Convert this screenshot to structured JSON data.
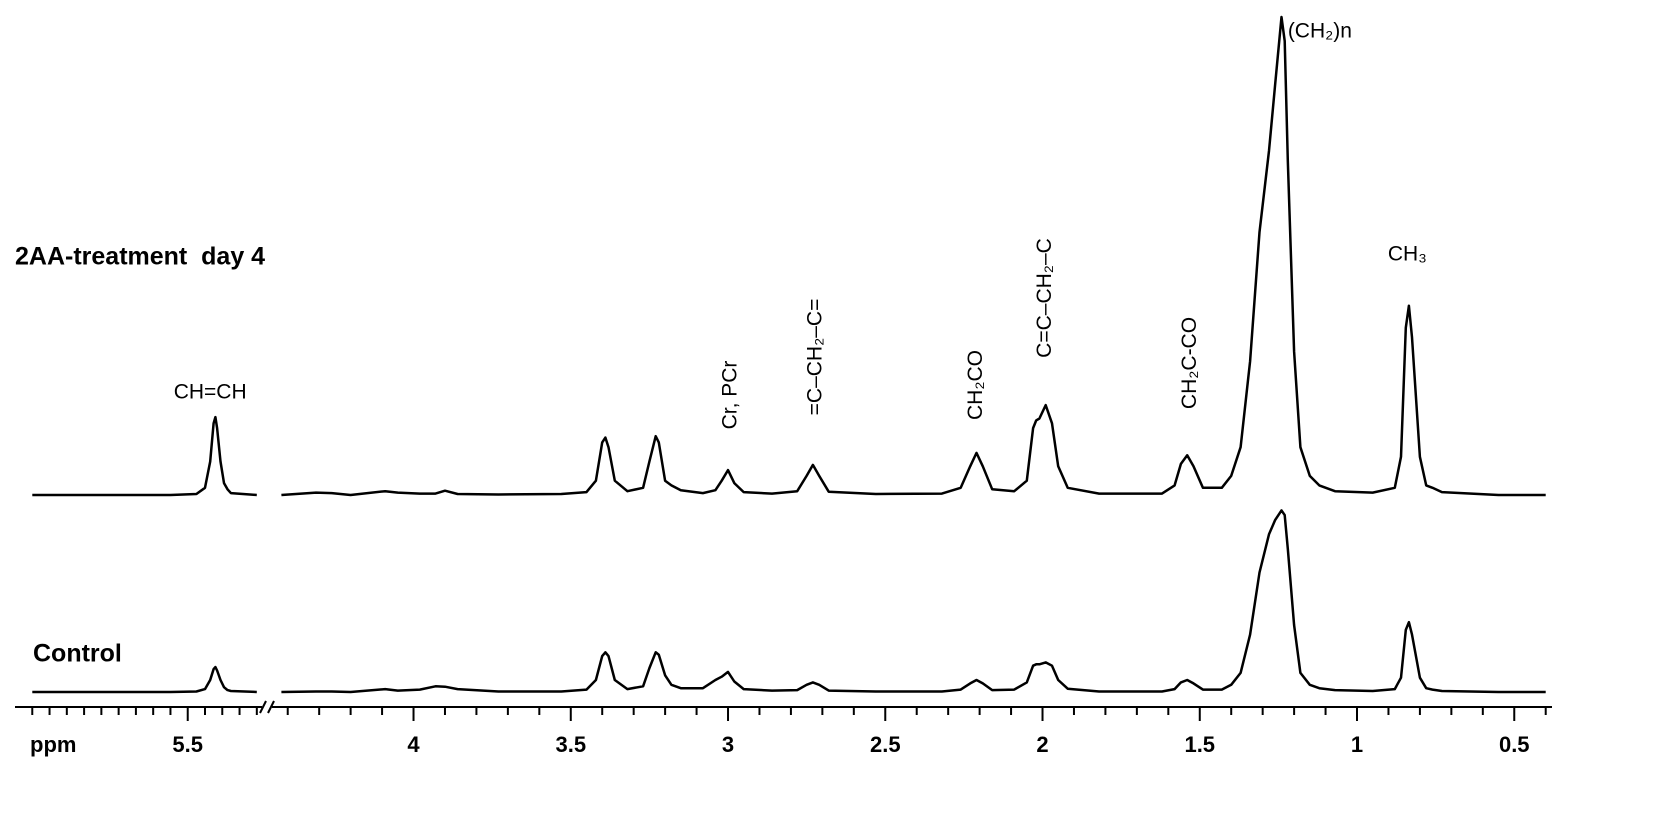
{
  "chart_data": {
    "type": "line",
    "x_label": "ppm",
    "xlim": [
      6.5,
      0.38
    ],
    "xbreak": [
      5.07,
      4.45
    ],
    "xticks": [
      5.5,
      4.0,
      3.5,
      3.0,
      2.5,
      2.0,
      1.5,
      1.0,
      0.5
    ],
    "xminorticks": [
      6.4,
      6.3,
      6.2,
      6.1,
      6.0,
      5.9,
      5.8,
      5.7,
      5.6,
      5.4,
      5.3,
      5.2,
      5.1,
      4.4,
      4.3,
      4.2,
      4.1,
      3.9,
      3.8,
      3.7,
      3.6,
      3.4,
      3.3,
      3.2,
      3.1,
      2.9,
      2.8,
      2.7,
      2.6,
      2.4,
      2.3,
      2.2,
      2.1,
      1.9,
      1.8,
      1.7,
      1.6,
      1.4,
      1.3,
      1.2,
      1.1,
      0.9,
      0.8,
      0.7,
      0.6,
      0.4
    ],
    "ylim": [
      0,
      100
    ],
    "x": [
      6.4,
      5.6,
      5.45,
      5.4,
      5.37,
      5.35,
      5.34,
      5.33,
      5.31,
      5.29,
      5.27,
      5.25,
      5.1,
      4.42,
      4.31,
      4.26,
      4.2,
      4.09,
      4.05,
      3.98,
      3.93,
      3.9,
      3.86,
      3.73,
      3.53,
      3.45,
      3.42,
      3.4,
      3.39,
      3.38,
      3.36,
      3.32,
      3.27,
      3.25,
      3.23,
      3.22,
      3.2,
      3.18,
      3.15,
      3.08,
      3.04,
      3.02,
      3.0,
      2.98,
      2.95,
      2.86,
      2.78,
      2.75,
      2.73,
      2.71,
      2.68,
      2.53,
      2.32,
      2.26,
      2.23,
      2.21,
      2.19,
      2.16,
      2.09,
      2.05,
      2.03,
      2.02,
      2.01,
      1.99,
      1.97,
      1.95,
      1.92,
      1.82,
      1.62,
      1.58,
      1.56,
      1.54,
      1.52,
      1.49,
      1.43,
      1.4,
      1.37,
      1.34,
      1.31,
      1.28,
      1.26,
      1.24,
      1.23,
      1.22,
      1.2,
      1.18,
      1.15,
      1.12,
      1.07,
      0.95,
      0.88,
      0.86,
      0.845,
      0.835,
      0.825,
      0.8,
      0.78,
      0.76,
      0.73,
      0.55,
      0.4
    ],
    "series": [
      {
        "name": "2AA-treatment  day 4",
        "color": "#000000",
        "values": [
          0,
          0,
          0.2,
          1.5,
          7,
          15,
          16.3,
          14,
          7,
          2.5,
          1.2,
          0.4,
          0,
          0,
          0.5,
          0.4,
          0,
          0.8,
          0.5,
          0.3,
          0.3,
          0.9,
          0.2,
          0.1,
          0.2,
          0.6,
          3,
          11,
          12,
          10,
          3,
          0.8,
          1.5,
          7,
          12.3,
          11,
          3,
          2,
          1,
          0.4,
          1,
          3,
          5.2,
          2.5,
          0.6,
          0.3,
          0.8,
          4,
          6.3,
          4,
          0.7,
          0.2,
          0.3,
          1.5,
          6,
          8.8,
          6,
          1.2,
          0.8,
          3,
          14,
          15.6,
          16,
          18.8,
          15,
          6,
          1.5,
          0.3,
          0.3,
          2,
          6.5,
          8.3,
          6,
          1.5,
          1.5,
          4,
          10,
          28,
          55,
          72,
          86,
          100,
          95,
          70,
          30,
          10,
          4,
          2,
          0.8,
          0.5,
          1.5,
          8,
          35,
          39.6,
          33,
          8,
          2,
          1.5,
          0.6,
          0,
          0
        ]
      },
      {
        "name": "Control",
        "color": "#000000",
        "values": [
          0,
          0,
          0.1,
          0.6,
          2.5,
          4.8,
          5.2,
          4.5,
          2.5,
          1,
          0.4,
          0.2,
          0,
          0,
          0.1,
          0.1,
          0,
          0.6,
          0.3,
          0.5,
          1.2,
          1.1,
          0.6,
          0.1,
          0.1,
          0.5,
          2.5,
          7.5,
          8.3,
          7.5,
          2.5,
          0.6,
          1.2,
          5,
          8.3,
          7.8,
          3.5,
          1.5,
          0.8,
          0.8,
          2.5,
          3.2,
          4.2,
          2.2,
          0.6,
          0.3,
          0.4,
          1.5,
          2,
          1.5,
          0.3,
          0.1,
          0.1,
          0.5,
          1.8,
          2.5,
          1.8,
          0.4,
          0.5,
          2,
          5.5,
          5.8,
          5.8,
          6.2,
          5.5,
          2.5,
          0.7,
          0.1,
          0.1,
          0.6,
          2,
          2.5,
          1.8,
          0.5,
          0.5,
          1.5,
          4,
          12,
          25,
          33,
          36,
          38,
          37,
          30,
          14,
          4,
          1.5,
          0.8,
          0.4,
          0.2,
          0.6,
          3,
          13,
          14.6,
          12,
          3,
          0.8,
          0.5,
          0.2,
          0,
          0
        ]
      }
    ],
    "annotations": [
      {
        "text": "CH=CH",
        "x": 5.37,
        "rotated": false
      },
      {
        "text": "Cr, PCr",
        "x": 2.99,
        "rotated": true
      },
      {
        "text": "=C–CH₂–C=",
        "x": 2.72,
        "rotated": true
      },
      {
        "text": "CH₂CO",
        "x": 2.21,
        "rotated": true
      },
      {
        "text": "C=C–CH₂–C",
        "x": 1.99,
        "rotated": true
      },
      {
        "text": "CH₂C-CO",
        "x": 1.53,
        "rotated": true
      },
      {
        "text": "(CH₂)n",
        "x": 1.22,
        "rotated": false
      },
      {
        "text": "CH₃",
        "x": 0.84,
        "rotated": false
      }
    ]
  }
}
